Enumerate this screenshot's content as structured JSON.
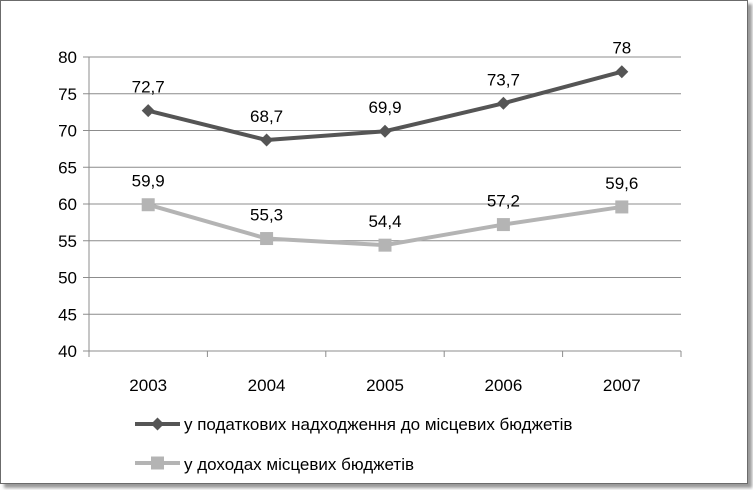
{
  "chart_data": {
    "type": "line",
    "title": "",
    "xlabel": "",
    "ylabel": "",
    "categories": [
      "2003",
      "2004",
      "2005",
      "2006",
      "2007"
    ],
    "ylim": [
      40,
      80
    ],
    "yticks": [
      "40",
      "45",
      "50",
      "55",
      "60",
      "65",
      "70",
      "75",
      "80"
    ],
    "grid": true,
    "legend_position": "bottom",
    "series": [
      {
        "name": "у податкових надходження до місцевих бюджетів",
        "values": [
          72.7,
          68.7,
          69.9,
          73.7,
          78
        ],
        "labels": [
          "72,7",
          "68,7",
          "69,9",
          "73,7",
          "78"
        ],
        "color": "#555555",
        "marker": "diamond"
      },
      {
        "name": "у доходах місцевих бюджетів",
        "values": [
          59.9,
          55.3,
          54.4,
          57.2,
          59.6
        ],
        "labels": [
          "59,9",
          "55,3",
          "54,4",
          "57,2",
          "59,6"
        ],
        "color": "#b4b4b4",
        "marker": "square"
      }
    ]
  }
}
